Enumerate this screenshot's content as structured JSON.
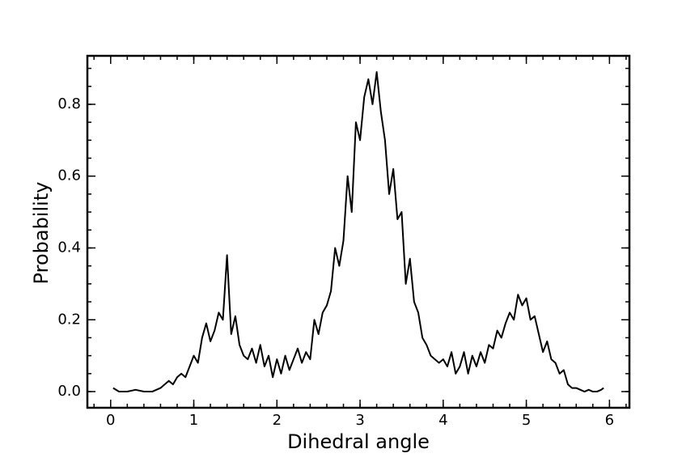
{
  "chart_data": {
    "type": "line",
    "xlabel": "Dihedral angle",
    "ylabel": "Probability",
    "x": [
      0.03,
      0.1,
      0.2,
      0.3,
      0.4,
      0.5,
      0.55,
      0.6,
      0.65,
      0.7,
      0.75,
      0.8,
      0.85,
      0.9,
      0.95,
      1.0,
      1.05,
      1.1,
      1.15,
      1.2,
      1.25,
      1.3,
      1.35,
      1.4,
      1.45,
      1.5,
      1.55,
      1.6,
      1.65,
      1.7,
      1.75,
      1.8,
      1.85,
      1.9,
      1.95,
      2.0,
      2.05,
      2.1,
      2.15,
      2.2,
      2.25,
      2.3,
      2.35,
      2.4,
      2.45,
      2.5,
      2.55,
      2.6,
      2.65,
      2.7,
      2.75,
      2.8,
      2.85,
      2.9,
      2.95,
      3.0,
      3.05,
      3.1,
      3.15,
      3.2,
      3.25,
      3.3,
      3.35,
      3.4,
      3.45,
      3.5,
      3.55,
      3.6,
      3.65,
      3.7,
      3.75,
      3.8,
      3.85,
      3.9,
      3.95,
      4.0,
      4.05,
      4.1,
      4.15,
      4.2,
      4.25,
      4.3,
      4.35,
      4.4,
      4.45,
      4.5,
      4.55,
      4.6,
      4.65,
      4.7,
      4.75,
      4.8,
      4.85,
      4.9,
      4.95,
      5.0,
      5.05,
      5.1,
      5.15,
      5.2,
      5.25,
      5.3,
      5.35,
      5.4,
      5.45,
      5.5,
      5.55,
      5.6,
      5.65,
      5.7,
      5.75,
      5.8,
      5.85,
      5.9,
      5.93
    ],
    "series": [
      {
        "color": "#000000",
        "values": [
          0.01,
          0,
          0,
          0.005,
          0,
          0,
          0.005,
          0.01,
          0.02,
          0.03,
          0.02,
          0.04,
          0.05,
          0.04,
          0.07,
          0.1,
          0.08,
          0.15,
          0.19,
          0.14,
          0.17,
          0.22,
          0.2,
          0.38,
          0.16,
          0.21,
          0.13,
          0.1,
          0.09,
          0.12,
          0.08,
          0.13,
          0.07,
          0.1,
          0.04,
          0.09,
          0.05,
          0.1,
          0.06,
          0.09,
          0.12,
          0.08,
          0.11,
          0.09,
          0.2,
          0.16,
          0.22,
          0.24,
          0.28,
          0.4,
          0.35,
          0.42,
          0.6,
          0.5,
          0.75,
          0.7,
          0.82,
          0.87,
          0.8,
          0.89,
          0.78,
          0.7,
          0.55,
          0.62,
          0.48,
          0.5,
          0.3,
          0.37,
          0.25,
          0.22,
          0.15,
          0.13,
          0.1,
          0.09,
          0.08,
          0.09,
          0.07,
          0.11,
          0.05,
          0.07,
          0.11,
          0.05,
          0.1,
          0.07,
          0.11,
          0.08,
          0.13,
          0.12,
          0.17,
          0.15,
          0.19,
          0.22,
          0.2,
          0.27,
          0.24,
          0.26,
          0.2,
          0.21,
          0.16,
          0.11,
          0.14,
          0.09,
          0.08,
          0.05,
          0.06,
          0.02,
          0.01,
          0.01,
          0.005,
          0,
          0.005,
          0,
          0,
          0.005,
          0.01
        ]
      }
    ],
    "xlim": [
      -0.28,
      6.24
    ],
    "ylim": [
      -0.045,
      0.935
    ],
    "xticks": [
      0,
      1,
      2,
      3,
      4,
      5,
      6
    ],
    "yticks": [
      {
        "value": 0,
        "label": "0.0"
      },
      0.2,
      0.4,
      0.6,
      0.8
    ]
  }
}
